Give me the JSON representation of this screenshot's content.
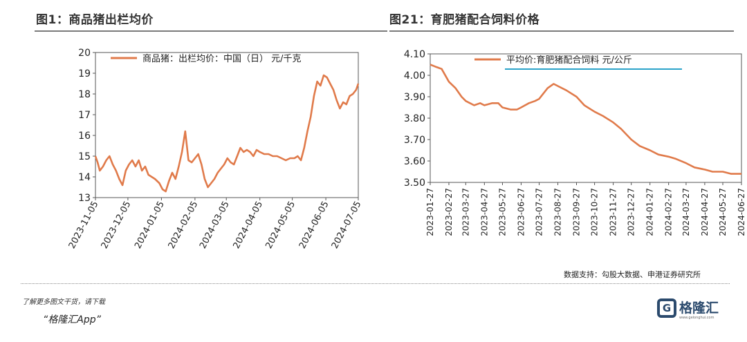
{
  "left_title": "图1：商品猪出栏均价",
  "right_title": "图21：育肥猪配合饲料价格",
  "source": "数据支持：勾股大数据、申港证券研究所",
  "footer_line1": "了解更多图文干货，请下载",
  "footer_line2": "“格隆汇App”",
  "logo_text": "格隆汇",
  "logo_sub": "www.gelonghui.com",
  "logo_letter": "G",
  "line_color": "#e07a4a",
  "chart_data": [
    {
      "type": "line",
      "ylim": [
        13,
        20
      ],
      "yticks": [
        13,
        14,
        15,
        16,
        17,
        18,
        19,
        20
      ],
      "xticks": [
        "2023-11-05",
        "2023-12-05",
        "2024-01-05",
        "2024-02-05",
        "2024-03-05",
        "2024-04-05",
        "2024-05-05",
        "2024-06-05",
        "2024-07-05"
      ],
      "legend": "商品猪：出栏均价：中国（日） 元/千克",
      "legend_position": "top",
      "series": [
        {
          "name": "商品猪：出栏均价：中国（日） 元/千克",
          "x": [
            "2023-11-05",
            "2023-11-07",
            "2023-11-09",
            "2023-11-12",
            "2023-11-15",
            "2023-11-18",
            "2023-11-21",
            "2023-11-24",
            "2023-11-27",
            "2023-11-30",
            "2023-12-03",
            "2023-12-06",
            "2023-12-09",
            "2023-12-12",
            "2023-12-15",
            "2023-12-18",
            "2023-12-21",
            "2023-12-24",
            "2023-12-27",
            "2023-12-30",
            "2024-01-03",
            "2024-01-06",
            "2024-01-09",
            "2024-01-12",
            "2024-01-15",
            "2024-01-18",
            "2024-01-21",
            "2024-01-24",
            "2024-01-27",
            "2024-01-30",
            "2024-02-02",
            "2024-02-05",
            "2024-02-08",
            "2024-02-11",
            "2024-02-14",
            "2024-02-17",
            "2024-02-20",
            "2024-02-23",
            "2024-02-26",
            "2024-02-29",
            "2024-03-03",
            "2024-03-06",
            "2024-03-09",
            "2024-03-12",
            "2024-03-15",
            "2024-03-18",
            "2024-03-21",
            "2024-03-24",
            "2024-03-27",
            "2024-03-30",
            "2024-04-02",
            "2024-04-05",
            "2024-04-09",
            "2024-04-13",
            "2024-04-17",
            "2024-04-21",
            "2024-04-25",
            "2024-04-29",
            "2024-05-03",
            "2024-05-07",
            "2024-05-10",
            "2024-05-13",
            "2024-05-16",
            "2024-05-19",
            "2024-05-22",
            "2024-05-25",
            "2024-05-28",
            "2024-05-31",
            "2024-06-03",
            "2024-06-06",
            "2024-06-09",
            "2024-06-12",
            "2024-06-15",
            "2024-06-18",
            "2024-06-21",
            "2024-06-24",
            "2024-06-27",
            "2024-06-30",
            "2024-07-03",
            "2024-07-05"
          ],
          "values": [
            15.0,
            14.7,
            14.3,
            14.5,
            14.8,
            15.0,
            14.6,
            14.3,
            13.9,
            13.6,
            14.3,
            14.6,
            14.8,
            14.5,
            14.8,
            14.3,
            14.5,
            14.1,
            14.0,
            13.9,
            13.7,
            13.4,
            13.3,
            13.8,
            14.2,
            13.9,
            14.5,
            15.2,
            16.2,
            14.8,
            14.7,
            14.9,
            15.1,
            14.6,
            13.9,
            13.5,
            13.7,
            13.9,
            14.2,
            14.4,
            14.6,
            14.9,
            14.7,
            14.6,
            15.0,
            15.4,
            15.2,
            15.3,
            15.2,
            15.0,
            15.3,
            15.2,
            15.1,
            15.1,
            15.0,
            15.0,
            14.9,
            14.8,
            14.9,
            14.9,
            15.0,
            14.8,
            15.4,
            16.2,
            16.9,
            17.9,
            18.6,
            18.4,
            18.9,
            18.8,
            18.5,
            18.2,
            17.7,
            17.3,
            17.6,
            17.5,
            17.9,
            18.0,
            18.2,
            18.5
          ]
        }
      ]
    },
    {
      "type": "line",
      "ylim": [
        3.5,
        4.1
      ],
      "yticks": [
        3.5,
        3.6,
        3.7,
        3.8,
        3.9,
        4.0,
        4.1
      ],
      "xticks": [
        "2023-01-27",
        "2023-02-27",
        "2023-03-27",
        "2023-04-27",
        "2023-05-27",
        "2023-06-27",
        "2023-07-27",
        "2023-08-27",
        "2023-09-27",
        "2023-10-27",
        "2023-11-27",
        "2023-12-27",
        "2024-01-27",
        "2024-02-27",
        "2024-03-27",
        "2024-04-27",
        "2024-05-27",
        "2024-06-27"
      ],
      "legend": "平均价:育肥猪配合饲料 元/公斤",
      "legend_position": "top",
      "series": [
        {
          "name": "平均价:育肥猪配合饲料 元/公斤",
          "x": [
            "2023-01-27",
            "2023-02-05",
            "2023-02-15",
            "2023-02-27",
            "2023-03-10",
            "2023-03-20",
            "2023-03-27",
            "2023-04-10",
            "2023-04-20",
            "2023-04-27",
            "2023-05-10",
            "2023-05-20",
            "2023-05-27",
            "2023-06-10",
            "2023-06-20",
            "2023-06-27",
            "2023-07-10",
            "2023-07-20",
            "2023-07-27",
            "2023-08-10",
            "2023-08-20",
            "2023-08-27",
            "2023-09-10",
            "2023-09-27",
            "2023-10-10",
            "2023-10-27",
            "2023-11-10",
            "2023-11-27",
            "2023-12-10",
            "2023-12-27",
            "2024-01-10",
            "2024-01-27",
            "2024-02-10",
            "2024-02-27",
            "2024-03-10",
            "2024-03-27",
            "2024-04-10",
            "2024-04-27",
            "2024-05-10",
            "2024-05-27",
            "2024-06-10",
            "2024-06-27"
          ],
          "values": [
            4.05,
            4.04,
            4.03,
            3.97,
            3.94,
            3.9,
            3.88,
            3.86,
            3.87,
            3.86,
            3.87,
            3.87,
            3.85,
            3.84,
            3.84,
            3.85,
            3.87,
            3.88,
            3.89,
            3.94,
            3.96,
            3.95,
            3.93,
            3.9,
            3.86,
            3.83,
            3.81,
            3.78,
            3.75,
            3.7,
            3.67,
            3.65,
            3.63,
            3.62,
            3.61,
            3.59,
            3.57,
            3.56,
            3.55,
            3.55,
            3.54,
            3.54
          ]
        }
      ]
    }
  ]
}
